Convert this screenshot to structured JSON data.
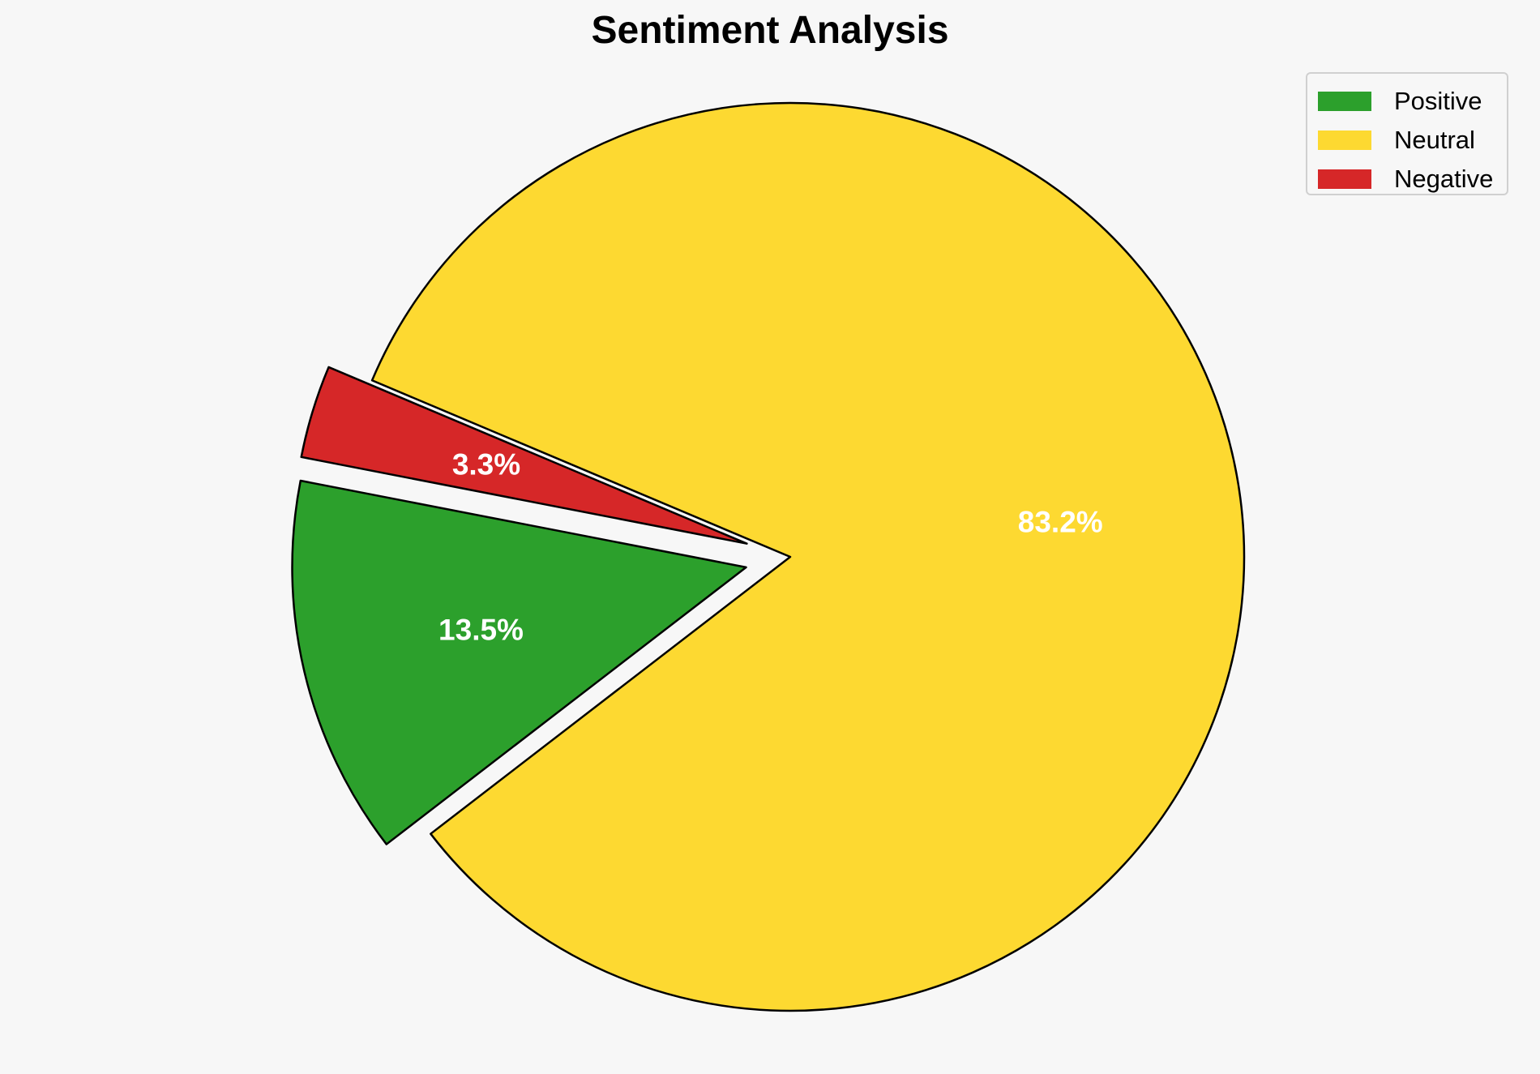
{
  "chart_data": {
    "type": "pie",
    "title": "Sentiment Analysis",
    "legend_position": "top-right",
    "slices": [
      {
        "label": "Positive",
        "value": 13.5,
        "display": "13.5%",
        "color": "#2ca02c",
        "exploded": true
      },
      {
        "label": "Neutral",
        "value": 83.2,
        "display": "83.2%",
        "color": "#fdd931",
        "exploded": false
      },
      {
        "label": "Negative",
        "value": 3.3,
        "display": "3.3%",
        "color": "#d62728",
        "exploded": true
      }
    ]
  }
}
